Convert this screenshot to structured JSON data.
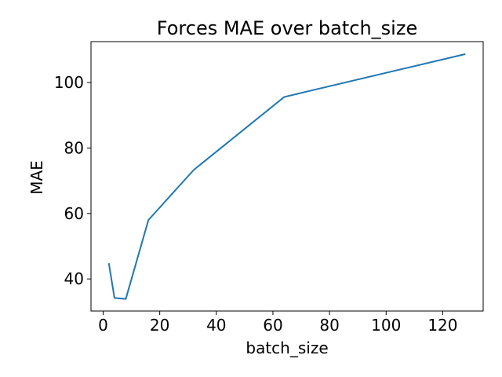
{
  "chart_data": {
    "type": "line",
    "title": "Forces MAE over batch_size",
    "xlabel": "batch_size",
    "ylabel": "MAE",
    "x": [
      2,
      4,
      8,
      16,
      32,
      64,
      128
    ],
    "series": [
      {
        "values": [
          44.8,
          34.2,
          33.9,
          58.0,
          73.3,
          95.6,
          108.7
        ],
        "color": "#1f77b4"
      }
    ],
    "xlim": [
      -4.3,
      134.3
    ],
    "ylim": [
      30.2,
      112.5
    ],
    "xticks": [
      0,
      20,
      40,
      60,
      80,
      100,
      120
    ],
    "yticks": [
      40,
      60,
      80,
      100
    ],
    "grid": false,
    "legend": "none"
  }
}
